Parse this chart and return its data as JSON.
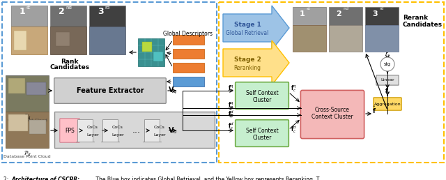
{
  "bg_color": "#ffffff",
  "blue_border": "#5b9bd5",
  "yellow_border": "#ffc000",
  "gray_box": "#d0d0d0",
  "gray_box2": "#c8c8c8",
  "green_box_fc": "#c6efce",
  "green_box_ec": "#70ad47",
  "pink_box_fc": "#f4b8b8",
  "pink_box_ec": "#d06060",
  "orange_bar": "#ed7d31",
  "blue_bar": "#5b9bd5",
  "light_blue_arrow": "#9dc3e6",
  "yellow_arrow": "#ffc000",
  "teal_block": "#4bacc6",
  "fps_fc": "#ffc0c8",
  "fps_ec": "#d08090",
  "agg_fc": "#ffd966",
  "agg_ec": "#cc9900",
  "sig_fc": "#ffffff",
  "lin_fc": "#e0e0e0",
  "img1_top": "#a0a0a0",
  "img2_top": "#707070",
  "img3_top": "#404040",
  "caption": "2: ",
  "caption_bold": "Architecture of CSCPR:",
  "caption_rest": " The Blue box indicates Global Retrieval, and the Yellow box represents Reranking. T"
}
